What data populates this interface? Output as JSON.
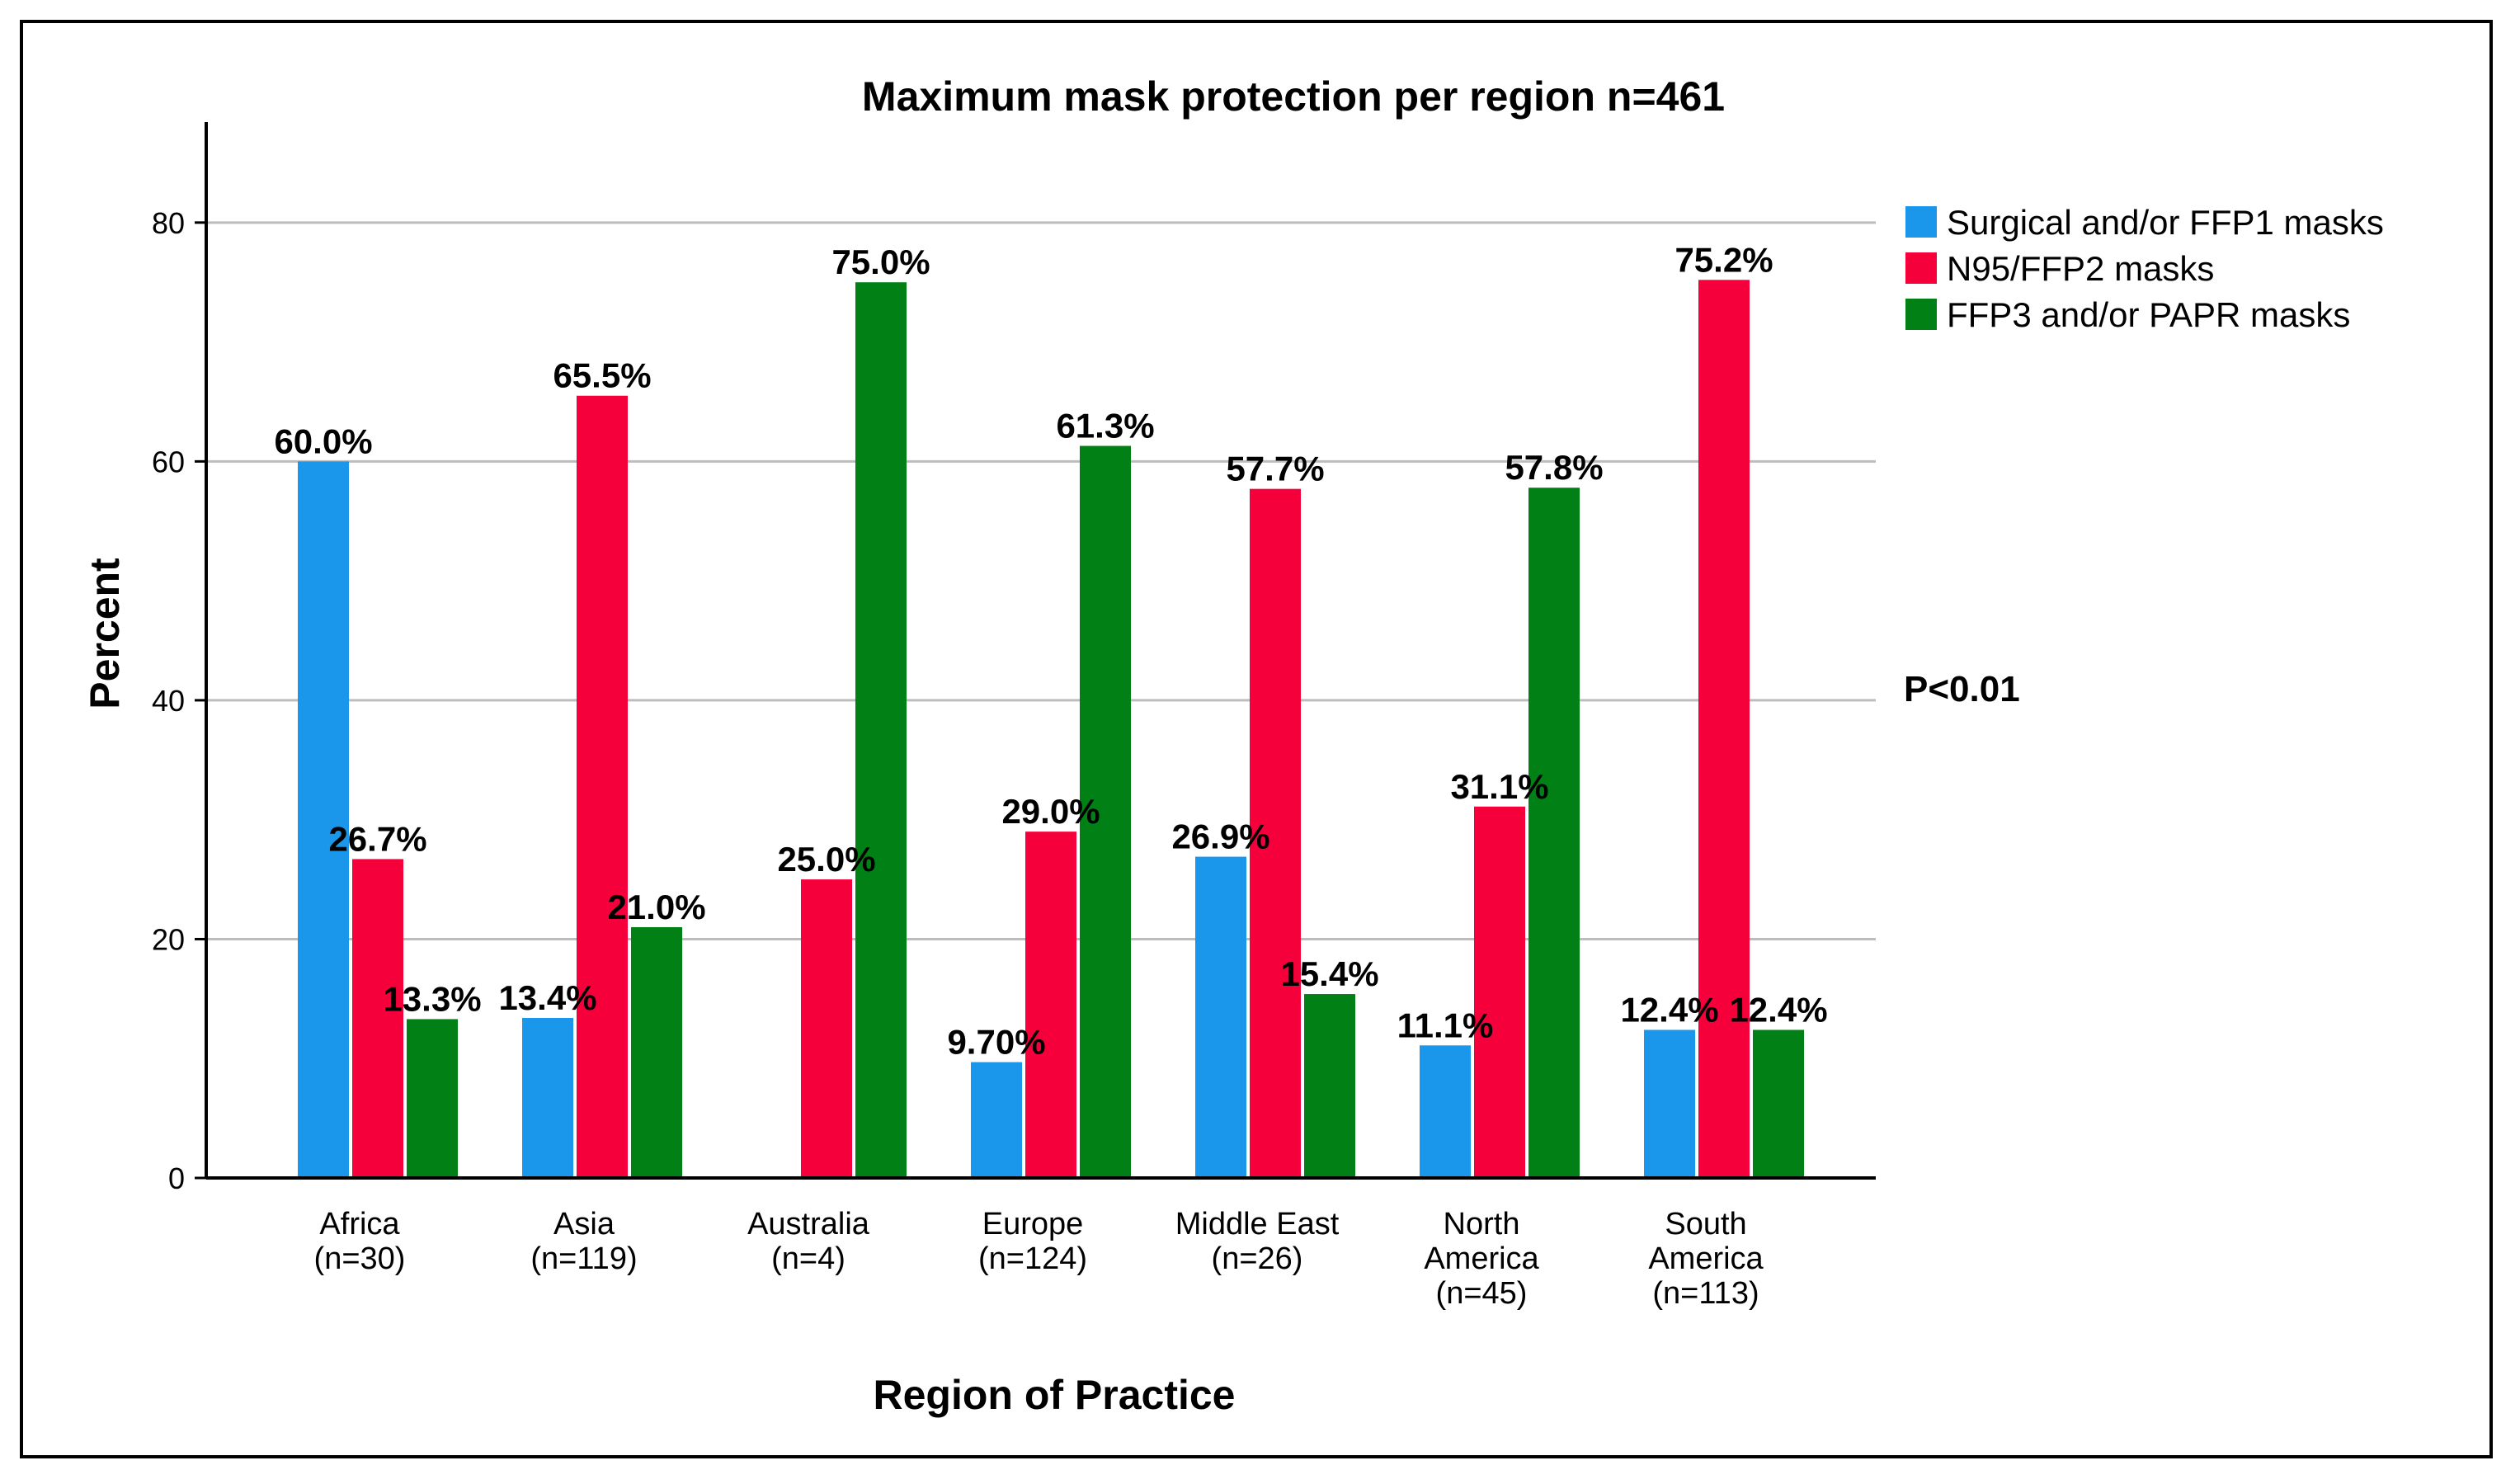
{
  "chart_data": {
    "type": "bar",
    "title": "Maximum mask protection per region n=461",
    "xlabel": "Region of Practice",
    "ylabel": "Percent",
    "ylim": [
      0,
      88
    ],
    "yticks": [
      "0",
      "20",
      "40",
      "60",
      "80"
    ],
    "grid": true,
    "legend_position": "top-right",
    "annotation": "P<0.01",
    "categories": [
      [
        "Africa",
        "(n=30)"
      ],
      [
        "Asia",
        "(n=119)"
      ],
      [
        "Australia",
        "(n=4)"
      ],
      [
        "Europe",
        "(n=124)"
      ],
      [
        "Middle East",
        "(n=26)"
      ],
      [
        "North",
        "America",
        "(n=45)"
      ],
      [
        "South",
        "America",
        "(n=113)"
      ]
    ],
    "series": [
      {
        "name": "Surgical and/or FFP1 masks",
        "color": "#1a96ea",
        "values": [
          60.0,
          13.4,
          null,
          9.7,
          26.9,
          11.1,
          12.4
        ],
        "labels": [
          "60.0%",
          "13.4%",
          "",
          "9.70%",
          "26.9%",
          "11.1%",
          "12.4%"
        ]
      },
      {
        "name": "N95/FFP2 masks",
        "color": "#f5003a",
        "values": [
          26.7,
          65.5,
          25.0,
          29.0,
          57.7,
          31.1,
          75.2
        ],
        "labels": [
          "26.7%",
          "65.5%",
          "25.0%",
          "29.0%",
          "57.7%",
          "31.1%",
          "75.2%"
        ]
      },
      {
        "name": "FFP3 and/or PAPR masks",
        "color": "#008015",
        "values": [
          13.3,
          21.0,
          75.0,
          61.3,
          15.4,
          57.8,
          12.4
        ],
        "labels": [
          "13.3%",
          "21.0%",
          "75.0%",
          "61.3%",
          "15.4%",
          "57.8%",
          "12.4%"
        ]
      }
    ]
  }
}
